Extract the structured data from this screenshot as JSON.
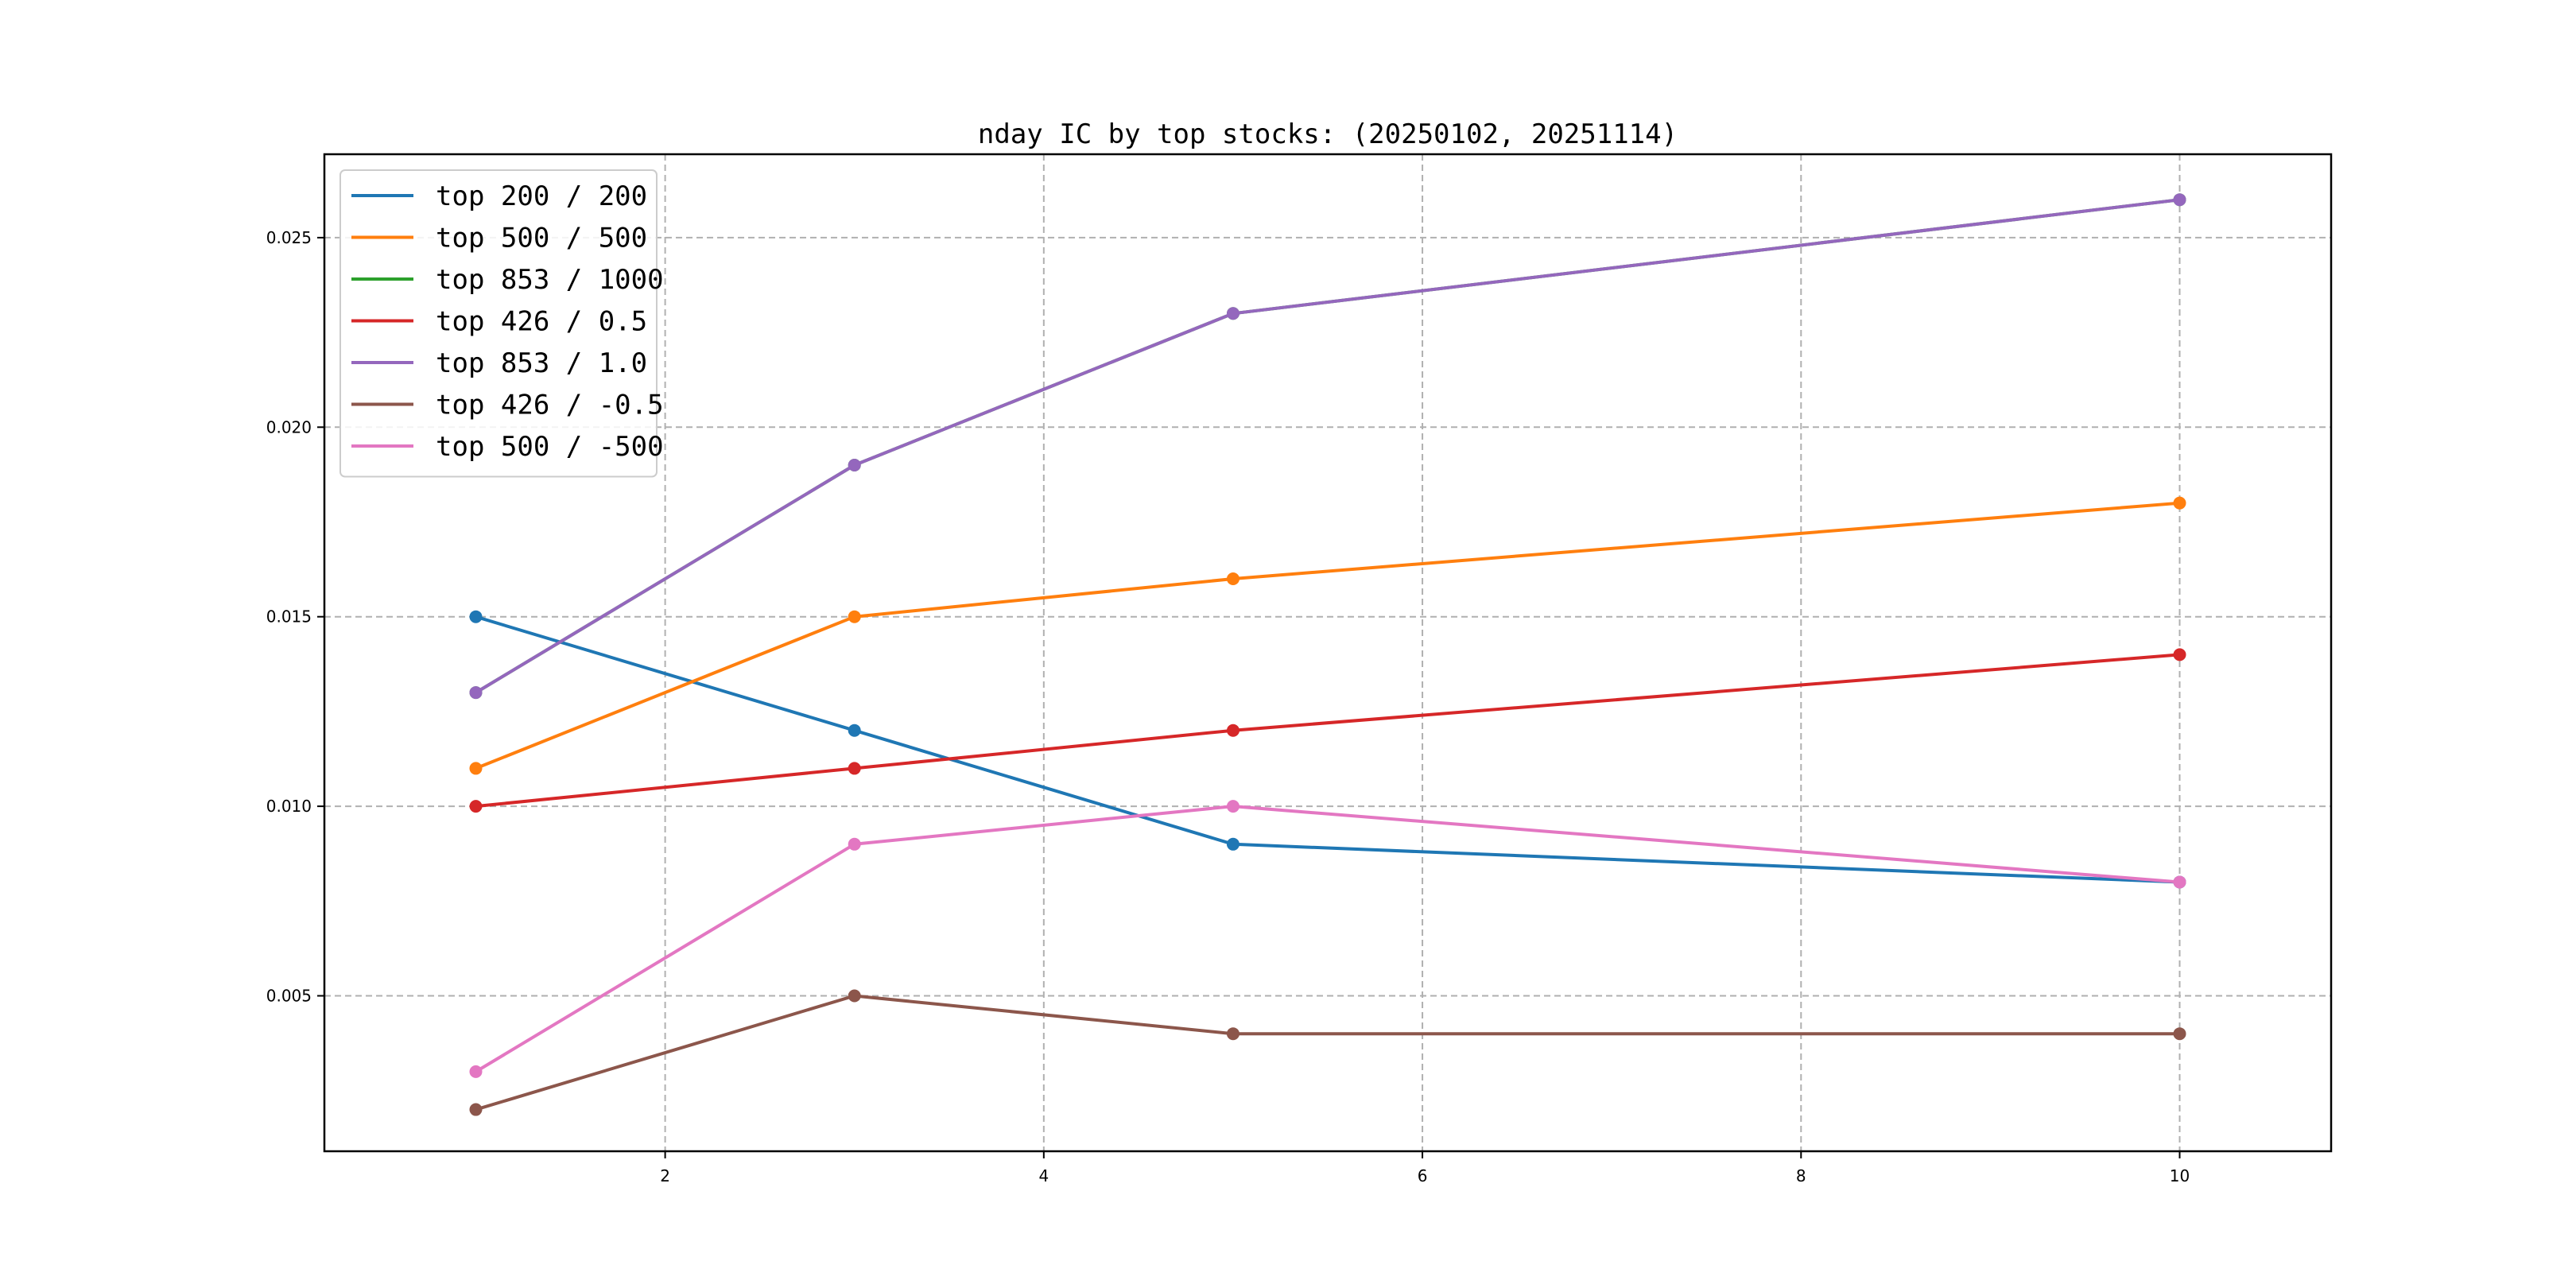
{
  "chart_data": {
    "type": "line",
    "title": "nday IC by top stocks: (20250102, 20251114)",
    "xlabel": "",
    "ylabel": "",
    "xlim": [
      0.2,
      10.8
    ],
    "ylim": [
      0.0009,
      0.0272
    ],
    "x": [
      1,
      3,
      5,
      10
    ],
    "x_ticks": [
      2,
      4,
      6,
      8,
      10
    ],
    "x_tick_labels": [
      "2",
      "4",
      "6",
      "8",
      "10"
    ],
    "y_ticks": [
      0.005,
      0.01,
      0.015,
      0.02,
      0.025
    ],
    "y_tick_labels": [
      "0.005",
      "0.010",
      "0.015",
      "0.020",
      "0.025"
    ],
    "grid": true,
    "legend_position": "top-left",
    "series": [
      {
        "name": "top 200 / 200",
        "color": "#1f77b4",
        "values": [
          0.015,
          0.012,
          0.009,
          0.008
        ]
      },
      {
        "name": "top 500 / 500",
        "color": "#ff7f0e",
        "values": [
          0.011,
          0.015,
          0.016,
          0.018
        ]
      },
      {
        "name": "top 853 / 1000",
        "color": "#2ca02c",
        "values": [
          0.013,
          0.019,
          0.023,
          0.026
        ]
      },
      {
        "name": "top 426 / 0.5",
        "color": "#d62728",
        "values": [
          0.01,
          0.011,
          0.012,
          0.014
        ]
      },
      {
        "name": "top 853 / 1.0",
        "color": "#9467bd",
        "values": [
          0.013,
          0.019,
          0.023,
          0.026
        ]
      },
      {
        "name": "top 426 / -0.5",
        "color": "#8c564b",
        "values": [
          0.002,
          0.005,
          0.004,
          0.004
        ]
      },
      {
        "name": "top 500 / -500",
        "color": "#e377c2",
        "values": [
          0.003,
          0.009,
          0.01,
          0.008
        ]
      }
    ]
  }
}
